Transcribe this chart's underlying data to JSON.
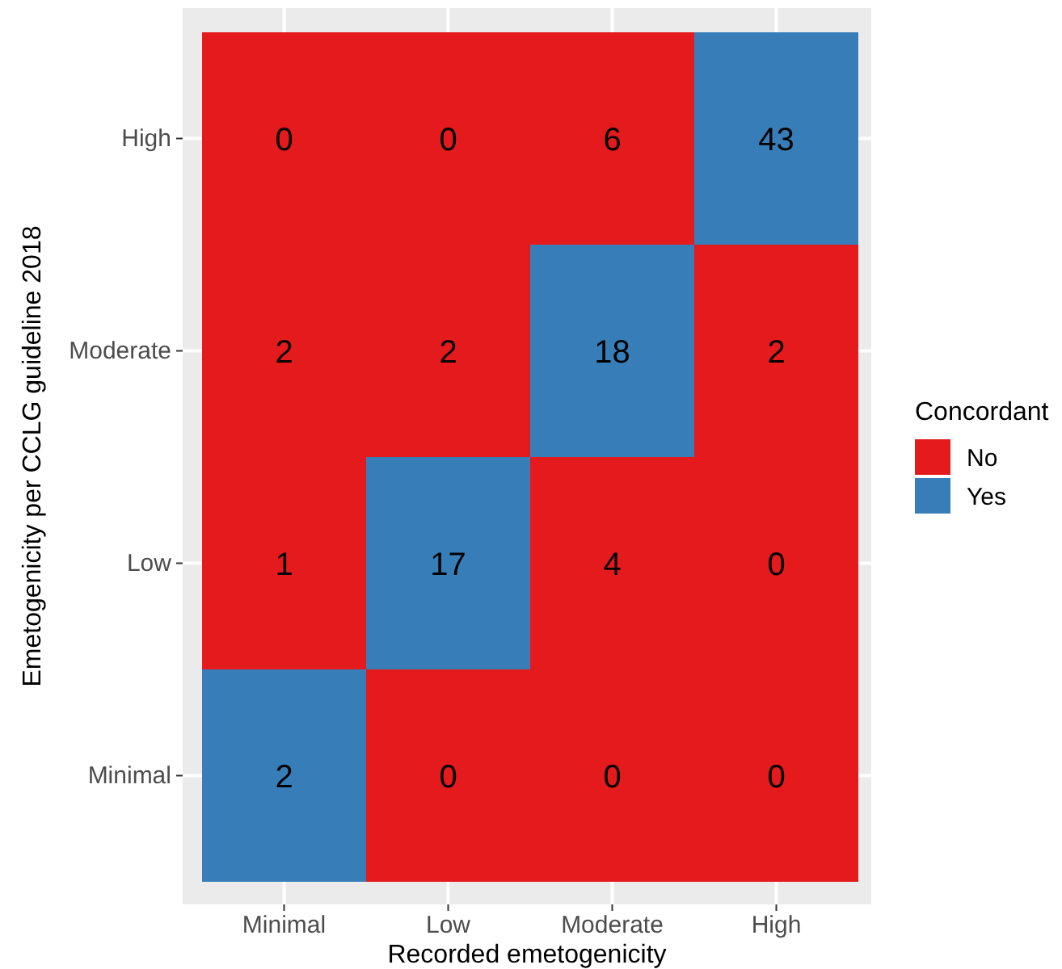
{
  "chart_data": {
    "type": "heatmap",
    "xlabel": "Recorded emetogenicity",
    "ylabel": "Emetogenicity per CCLG guideline 2018",
    "legend_title": "Concordant",
    "grid": true,
    "categories": [
      "Minimal",
      "Low",
      "Moderate",
      "High"
    ],
    "y_categories": [
      "High",
      "Moderate",
      "Low",
      "Minimal"
    ],
    "cells": [
      [
        0,
        0,
        6,
        43
      ],
      [
        2,
        2,
        18,
        2
      ],
      [
        1,
        17,
        4,
        0
      ],
      [
        2,
        0,
        0,
        0
      ]
    ],
    "colors": [
      [
        "#e41a1c",
        "#e41a1c",
        "#e41a1c",
        "#377eb8"
      ],
      [
        "#e41a1c",
        "#e41a1c",
        "#377eb8",
        "#e41a1c"
      ],
      [
        "#e41a1c",
        "#377eb8",
        "#e41a1c",
        "#e41a1c"
      ],
      [
        "#377eb8",
        "#e41a1c",
        "#e41a1c",
        "#e41a1c"
      ]
    ],
    "annotations": [
      "No",
      "Yes"
    ],
    "data_labels": true
  }
}
